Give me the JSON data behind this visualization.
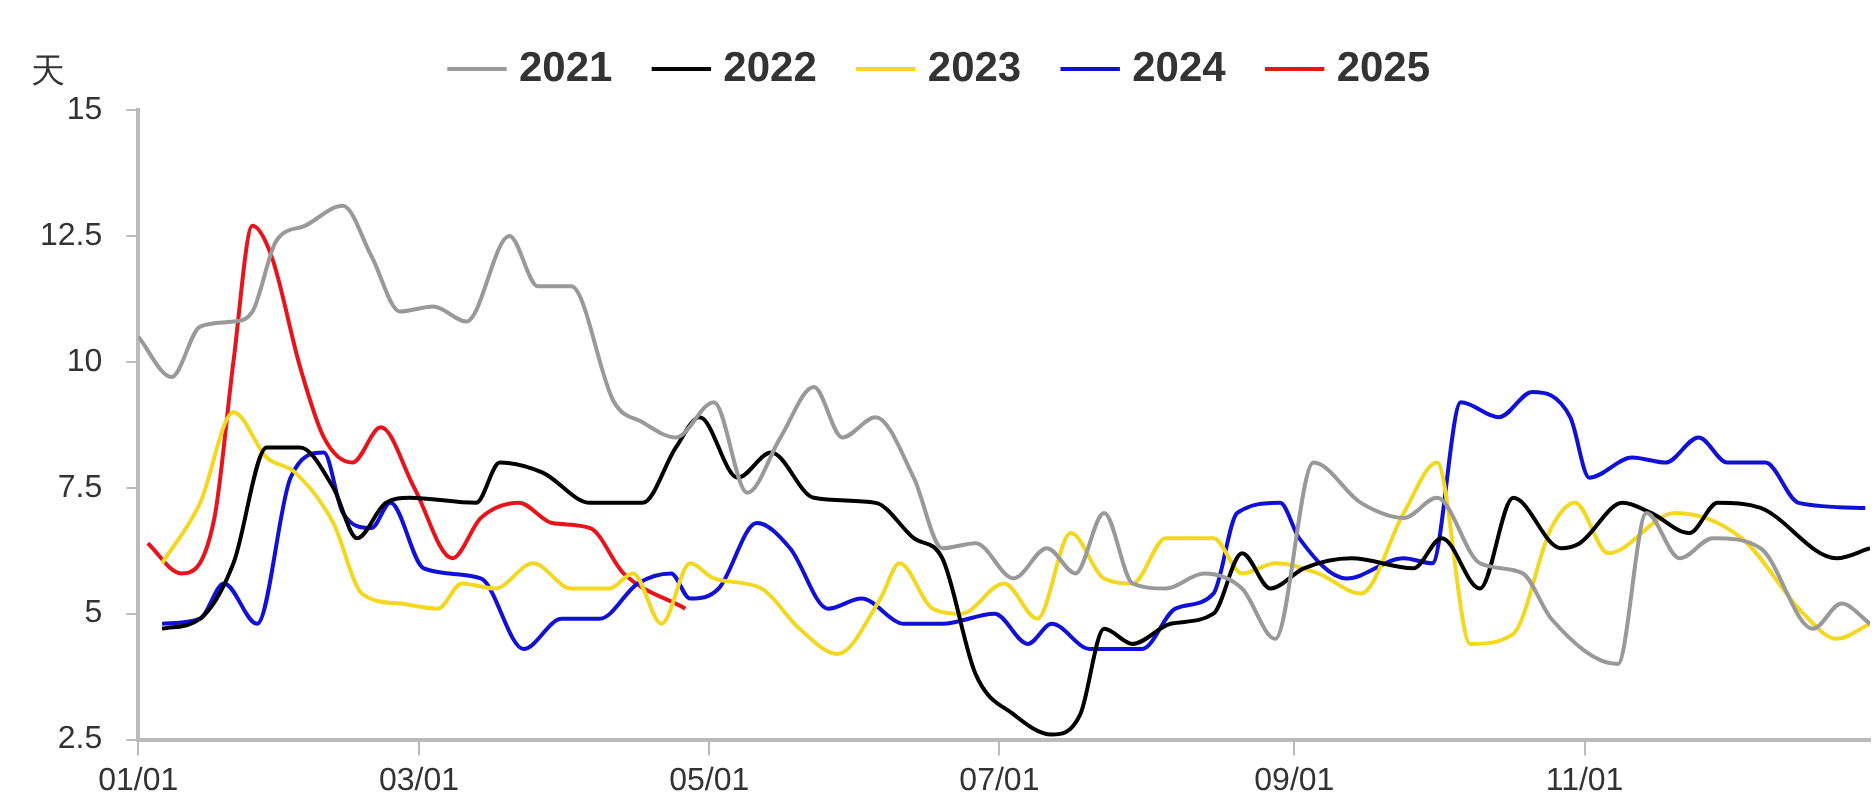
{
  "chart_data": {
    "type": "line",
    "ylabel": "天",
    "legend": "top",
    "marker": "none",
    "grid": false,
    "xlim": [
      "--01-01",
      "--12-31"
    ],
    "xticks": [
      {
        "value": "--01-01",
        "label": "01/01"
      },
      {
        "value": "--03-01",
        "label": "03/01"
      },
      {
        "value": "--05-01",
        "label": "05/01"
      },
      {
        "value": "--07-01",
        "label": "07/01"
      },
      {
        "value": "--09-01",
        "label": "09/01"
      },
      {
        "value": "--11-01",
        "label": "11/01"
      }
    ],
    "ylim": [
      2.5,
      15
    ],
    "yticks": [
      2.5,
      5,
      7.5,
      10,
      12.5,
      15
    ],
    "series": [
      {
        "name": "2021",
        "color": "#999999",
        "x": [
          "--01-01",
          "--01-08",
          "--01-14",
          "--01-21",
          "--01-25",
          "--01-30",
          "--02-05",
          "--02-13",
          "--02-19",
          "--02-25",
          "--03-04",
          "--03-11",
          "--03-20",
          "--03-26",
          "--04-02",
          "--04-11",
          "--04-17",
          "--04-24",
          "--05-02",
          "--05-09",
          "--05-16",
          "--05-23",
          "--05-29",
          "--06-05",
          "--06-13",
          "--06-19",
          "--06-26",
          "--07-04",
          "--07-11",
          "--07-17",
          "--07-23",
          "--07-29",
          "--08-05",
          "--08-13",
          "--08-21",
          "--08-28",
          "--09-05",
          "--09-15",
          "--09-24",
          "--10-01",
          "--10-10",
          "--10-19",
          "--10-25",
          "--11-08",
          "--11-14",
          "--11-21",
          "--11-28",
          "--12-08",
          "--12-19",
          "--12-25",
          "--12-31"
        ],
        "values": [
          10.5,
          9.7,
          10.7,
          10.8,
          11.0,
          12.4,
          12.7,
          13.1,
          12.1,
          11.0,
          11.1,
          10.8,
          12.5,
          11.5,
          11.5,
          9.2,
          8.8,
          8.5,
          9.2,
          7.4,
          8.5,
          9.5,
          8.5,
          8.9,
          7.7,
          6.3,
          6.4,
          5.7,
          6.3,
          5.8,
          7.0,
          5.6,
          5.5,
          5.8,
          5.5,
          4.5,
          8.0,
          7.2,
          6.9,
          7.3,
          6.0,
          5.8,
          4.9,
          4.0,
          7.0,
          6.1,
          6.5,
          6.3,
          4.7,
          5.2,
          4.8
        ]
      },
      {
        "name": "2022",
        "color": "#000000",
        "x": [
          "--01-06",
          "--01-14",
          "--01-21",
          "--01-28",
          "--02-04",
          "--02-11",
          "--02-16",
          "--02-22",
          "--02-27",
          "--03-13",
          "--03-18",
          "--03-27",
          "--04-06",
          "--04-17",
          "--04-24",
          "--04-29",
          "--05-07",
          "--05-14",
          "--05-23",
          "--06-05",
          "--06-13",
          "--06-19",
          "--06-26",
          "--07-04",
          "--07-12",
          "--07-18",
          "--07-23",
          "--07-29",
          "--08-06",
          "--08-15",
          "--08-21",
          "--08-27",
          "--09-03",
          "--09-13",
          "--09-26",
          "--10-02",
          "--10-10",
          "--10-17",
          "--10-27",
          "--10-31",
          "--11-09",
          "--11-15",
          "--11-23",
          "--11-29",
          "--12-08",
          "--12-24",
          "--12-31"
        ],
        "values": [
          4.7,
          4.9,
          6.0,
          8.3,
          8.3,
          7.5,
          6.5,
          7.2,
          7.3,
          7.2,
          8.0,
          7.8,
          7.2,
          7.2,
          8.3,
          8.9,
          7.7,
          8.2,
          7.3,
          7.2,
          6.5,
          6.1,
          3.8,
          3.0,
          2.6,
          3.0,
          4.7,
          4.4,
          4.8,
          5.0,
          6.2,
          5.5,
          5.9,
          6.1,
          5.9,
          6.5,
          5.5,
          7.3,
          6.3,
          6.4,
          7.2,
          7.0,
          6.6,
          7.2,
          7.1,
          6.1,
          6.3
        ]
      },
      {
        "name": "2023",
        "color": "#f2d820",
        "x": [
          "--01-06",
          "--01-14",
          "--01-21",
          "--01-28",
          "--02-03",
          "--02-11",
          "--02-17",
          "--02-25",
          "--03-05",
          "--03-10",
          "--03-17",
          "--03-25",
          "--04-02",
          "--04-10",
          "--04-15",
          "--04-21",
          "--04-27",
          "--05-02",
          "--05-12",
          "--05-20",
          "--05-28",
          "--06-06",
          "--06-10",
          "--06-17",
          "--06-23",
          "--07-02",
          "--07-09",
          "--07-16",
          "--07-23",
          "--07-29",
          "--08-05",
          "--08-15",
          "--08-21",
          "--08-28",
          "--09-06",
          "--09-15",
          "--09-24",
          "--10-01",
          "--10-08",
          "--10-17",
          "--10-25",
          "--10-30",
          "--11-06",
          "--11-20",
          "--12-04",
          "--12-17",
          "--12-24",
          "--12-31"
        ],
        "values": [
          6.0,
          7.2,
          9.0,
          8.1,
          7.8,
          6.8,
          5.4,
          5.2,
          5.1,
          5.6,
          5.5,
          6.0,
          5.5,
          5.5,
          5.8,
          4.8,
          6.0,
          5.7,
          5.5,
          4.7,
          4.2,
          5.3,
          6.0,
          5.1,
          5.0,
          5.6,
          4.9,
          6.6,
          5.7,
          5.6,
          6.5,
          6.5,
          5.8,
          6.0,
          5.8,
          5.4,
          7.0,
          8.0,
          4.4,
          4.6,
          6.7,
          7.2,
          6.2,
          7.0,
          6.5,
          5.0,
          4.5,
          4.8
        ]
      },
      {
        "name": "2024",
        "color": "#1010d8",
        "x": [
          "--01-06",
          "--01-14",
          "--01-19",
          "--01-26",
          "--02-02",
          "--02-09",
          "--02-13",
          "--02-19",
          "--02-23",
          "--03-02",
          "--03-14",
          "--03-23",
          "--03-31",
          "--04-08",
          "--04-16",
          "--04-23",
          "--04-27",
          "--05-03",
          "--05-11",
          "--05-18",
          "--05-26",
          "--06-02",
          "--06-11",
          "--06-19",
          "--06-30",
          "--07-07",
          "--07-12",
          "--07-20",
          "--07-31",
          "--08-07",
          "--08-15",
          "--08-20",
          "--08-29",
          "--09-02",
          "--09-12",
          "--09-24",
          "--09-30",
          "--10-06",
          "--10-14",
          "--10-21",
          "--10-29",
          "--11-02",
          "--11-11",
          "--11-18",
          "--11-25",
          "--12-01",
          "--12-09",
          "--12-16",
          "--12-30"
        ],
        "values": [
          4.8,
          4.9,
          5.6,
          4.8,
          7.7,
          8.2,
          7.0,
          6.7,
          7.2,
          5.9,
          5.7,
          4.3,
          4.9,
          4.9,
          5.6,
          5.8,
          5.3,
          5.5,
          6.8,
          6.3,
          5.1,
          5.3,
          4.8,
          4.8,
          5.0,
          4.4,
          4.8,
          4.3,
          4.3,
          5.1,
          5.4,
          7.0,
          7.2,
          6.5,
          5.7,
          6.1,
          6.0,
          9.2,
          8.9,
          9.4,
          8.9,
          7.7,
          8.1,
          8.0,
          8.5,
          8.0,
          8.0,
          7.2,
          7.1
        ]
      },
      {
        "name": "2025",
        "color": "#e8141c",
        "x": [
          "--01-03",
          "--01-10",
          "--01-17",
          "--01-21",
          "--01-25",
          "--01-29",
          "--02-04",
          "--02-09",
          "--02-15",
          "--02-21",
          "--02-28",
          "--03-08",
          "--03-14",
          "--03-22",
          "--03-29",
          "--04-06",
          "--04-13",
          "--04-26"
        ],
        "values": [
          6.4,
          5.8,
          6.9,
          10.0,
          12.7,
          12.1,
          9.9,
          8.5,
          8.0,
          8.7,
          7.5,
          6.1,
          6.9,
          7.2,
          6.8,
          6.7,
          5.8,
          5.1
        ]
      }
    ]
  }
}
